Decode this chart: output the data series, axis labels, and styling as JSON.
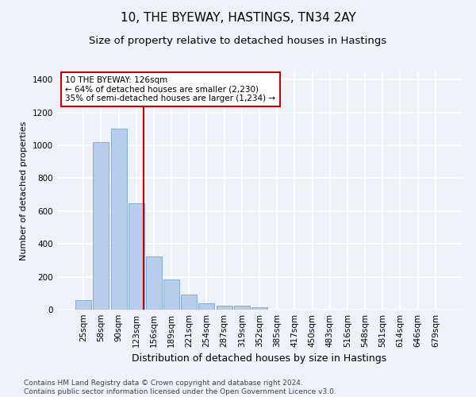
{
  "title": "10, THE BYEWAY, HASTINGS, TN34 2AY",
  "subtitle": "Size of property relative to detached houses in Hastings",
  "xlabel": "Distribution of detached houses by size in Hastings",
  "ylabel": "Number of detached properties",
  "bar_values": [
    60,
    1020,
    1100,
    650,
    325,
    185,
    90,
    40,
    25,
    22,
    15,
    0,
    0,
    0,
    0,
    0,
    0,
    0,
    0,
    0,
    0
  ],
  "bar_labels": [
    "25sqm",
    "58sqm",
    "90sqm",
    "123sqm",
    "156sqm",
    "189sqm",
    "221sqm",
    "254sqm",
    "287sqm",
    "319sqm",
    "352sqm",
    "385sqm",
    "417sqm",
    "450sqm",
    "483sqm",
    "516sqm",
    "548sqm",
    "581sqm",
    "614sqm",
    "646sqm",
    "679sqm"
  ],
  "bar_color": "#b8ccec",
  "bar_edgecolor": "#6699cc",
  "background_color": "#eef2f8",
  "grid_color": "#ffffff",
  "red_line_x": 3.42,
  "annotation_text_line1": "10 THE BYEWAY: 126sqm",
  "annotation_text_line2": "← 64% of detached houses are smaller (2,230)",
  "annotation_text_line3": "35% of semi-detached houses are larger (1,234) →",
  "annotation_box_color": "#ffffff",
  "annotation_box_edgecolor": "#cc0000",
  "red_line_color": "#cc0000",
  "ylim": [
    0,
    1450
  ],
  "yticks": [
    0,
    200,
    400,
    600,
    800,
    1000,
    1200,
    1400
  ],
  "footnote_line1": "Contains HM Land Registry data © Crown copyright and database right 2024.",
  "footnote_line2": "Contains public sector information licensed under the Open Government Licence v3.0.",
  "title_fontsize": 11,
  "subtitle_fontsize": 9.5,
  "xlabel_fontsize": 9,
  "ylabel_fontsize": 8,
  "tick_fontsize": 7.5,
  "annotation_fontsize": 7.5,
  "footnote_fontsize": 6.5
}
